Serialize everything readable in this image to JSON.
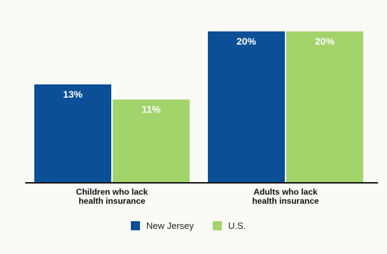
{
  "colors": {
    "background": "#fafaf7",
    "title": "#b03060",
    "baseline": "#111111"
  },
  "chart_data": {
    "type": "bar",
    "title": "",
    "xlabel": "",
    "ylabel": "",
    "ylim": [
      0,
      20
    ],
    "grid": false,
    "legend_position": "bottom-center",
    "categories": [
      [
        "Children who lack",
        "health insurance"
      ],
      [
        "Adults who lack",
        "health insurance"
      ]
    ],
    "series": [
      {
        "name": "New Jersey",
        "color": "#0b4f96",
        "values": [
          13,
          20
        ],
        "labels": [
          "13%",
          "20%"
        ]
      },
      {
        "name": "U.S.",
        "color": "#a3d36b",
        "values": [
          11,
          20
        ],
        "labels": [
          "11%",
          "20%"
        ]
      }
    ]
  }
}
